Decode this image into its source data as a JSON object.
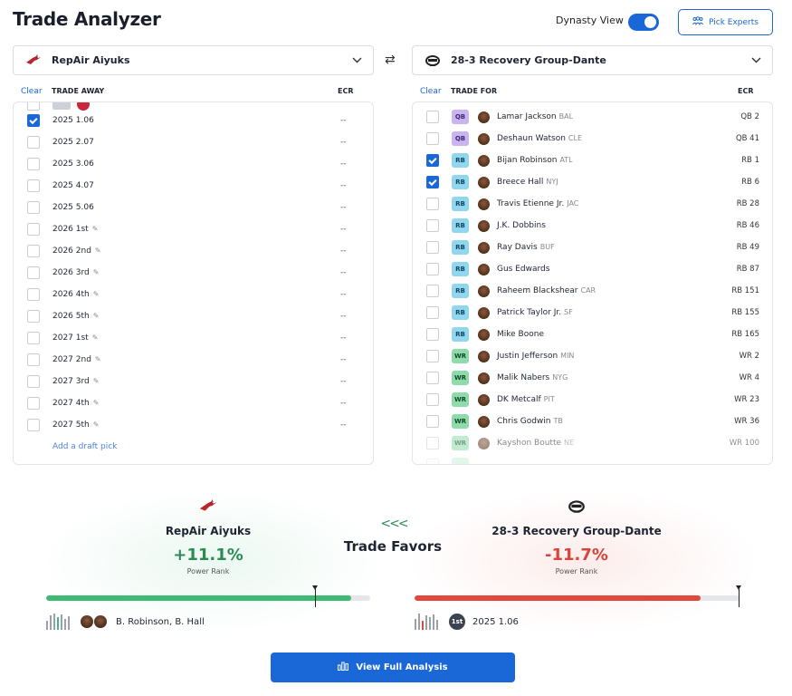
{
  "header": {
    "title": "Trade Analyzer",
    "dynasty_label": "Dynasty View",
    "dynasty_on": true,
    "pick_experts_label": "Pick Experts",
    "accent_color": "#1a67d8"
  },
  "left": {
    "team_name": "RepAir Aiyuks",
    "clear_label": "Clear",
    "col_label": "TRADE AWAY",
    "ecr_label": "ECR",
    "picks": [
      {
        "label": "2025 1.06",
        "checked": true,
        "editable": false,
        "ecr": "--"
      },
      {
        "label": "2025 2.07",
        "checked": false,
        "editable": false,
        "ecr": "--"
      },
      {
        "label": "2025 3.06",
        "checked": false,
        "editable": false,
        "ecr": "--"
      },
      {
        "label": "2025 4.07",
        "checked": false,
        "editable": false,
        "ecr": "--"
      },
      {
        "label": "2025 5.06",
        "checked": false,
        "editable": false,
        "ecr": "--"
      },
      {
        "label": "2026 1st",
        "checked": false,
        "editable": true,
        "ecr": "--"
      },
      {
        "label": "2026 2nd",
        "checked": false,
        "editable": true,
        "ecr": "--"
      },
      {
        "label": "2026 3rd",
        "checked": false,
        "editable": true,
        "ecr": "--"
      },
      {
        "label": "2026 4th",
        "checked": false,
        "editable": true,
        "ecr": "--"
      },
      {
        "label": "2026 5th",
        "checked": false,
        "editable": true,
        "ecr": "--"
      },
      {
        "label": "2027 1st",
        "checked": false,
        "editable": true,
        "ecr": "--"
      },
      {
        "label": "2027 2nd",
        "checked": false,
        "editable": true,
        "ecr": "--"
      },
      {
        "label": "2027 3rd",
        "checked": false,
        "editable": true,
        "ecr": "--"
      },
      {
        "label": "2027 4th",
        "checked": false,
        "editable": true,
        "ecr": "--"
      },
      {
        "label": "2027 5th",
        "checked": false,
        "editable": true,
        "ecr": "--"
      }
    ],
    "add_pick_label": "Add a draft pick"
  },
  "right": {
    "team_name": "28-3 Recovery Group-Dante",
    "clear_label": "Clear",
    "col_label": "TRADE FOR",
    "ecr_label": "ECR",
    "players": [
      {
        "pos": "QB",
        "name": "Lamar Jackson",
        "team": "BAL",
        "ecr": "QB 2",
        "checked": false
      },
      {
        "pos": "QB",
        "name": "Deshaun Watson",
        "team": "CLE",
        "ecr": "QB 41",
        "checked": false
      },
      {
        "pos": "RB",
        "name": "Bijan Robinson",
        "team": "ATL",
        "ecr": "RB 1",
        "checked": true
      },
      {
        "pos": "RB",
        "name": "Breece Hall",
        "team": "NYJ",
        "ecr": "RB 6",
        "checked": true
      },
      {
        "pos": "RB",
        "name": "Travis Etienne Jr.",
        "team": "JAC",
        "ecr": "RB 28",
        "checked": false
      },
      {
        "pos": "RB",
        "name": "J.K. Dobbins",
        "team": "",
        "ecr": "RB 46",
        "checked": false
      },
      {
        "pos": "RB",
        "name": "Ray Davis",
        "team": "BUF",
        "ecr": "RB 49",
        "checked": false
      },
      {
        "pos": "RB",
        "name": "Gus Edwards",
        "team": "",
        "ecr": "RB 87",
        "checked": false
      },
      {
        "pos": "RB",
        "name": "Raheem Blackshear",
        "team": "CAR",
        "ecr": "RB 151",
        "checked": false
      },
      {
        "pos": "RB",
        "name": "Patrick Taylor Jr.",
        "team": "SF",
        "ecr": "RB 155",
        "checked": false
      },
      {
        "pos": "RB",
        "name": "Mike Boone",
        "team": "",
        "ecr": "RB 165",
        "checked": false
      },
      {
        "pos": "WR",
        "name": "Justin Jefferson",
        "team": "MIN",
        "ecr": "WR 2",
        "checked": false
      },
      {
        "pos": "WR",
        "name": "Malik Nabers",
        "team": "NYG",
        "ecr": "WR 4",
        "checked": false
      },
      {
        "pos": "WR",
        "name": "DK Metcalf",
        "team": "PIT",
        "ecr": "WR 23",
        "checked": false
      },
      {
        "pos": "WR",
        "name": "Chris Godwin",
        "team": "TB",
        "ecr": "WR 36",
        "checked": false
      },
      {
        "pos": "WR",
        "name": "Kayshon Boutte",
        "team": "NE",
        "ecr": "WR 100",
        "checked": false
      }
    ]
  },
  "result": {
    "left_team": "RepAir Aiyuks",
    "left_pct": "+11.1%",
    "left_sub": "Power Rank",
    "left_fill": 0.94,
    "left_marker": 0.83,
    "left_summary": "B. Robinson, B. Hall",
    "left_color": "#3eba74",
    "favors_arrows": "<<<",
    "favors_label": "Trade Favors",
    "right_team": "28-3 Recovery Group-Dante",
    "right_pct": "-11.7%",
    "right_sub": "Power Rank",
    "right_fill": 0.88,
    "right_marker": 1.0,
    "right_badge": "1st",
    "right_summary": "2025 1.06",
    "right_color": "#e2483c"
  },
  "cta": {
    "label": "View Full Analysis"
  }
}
